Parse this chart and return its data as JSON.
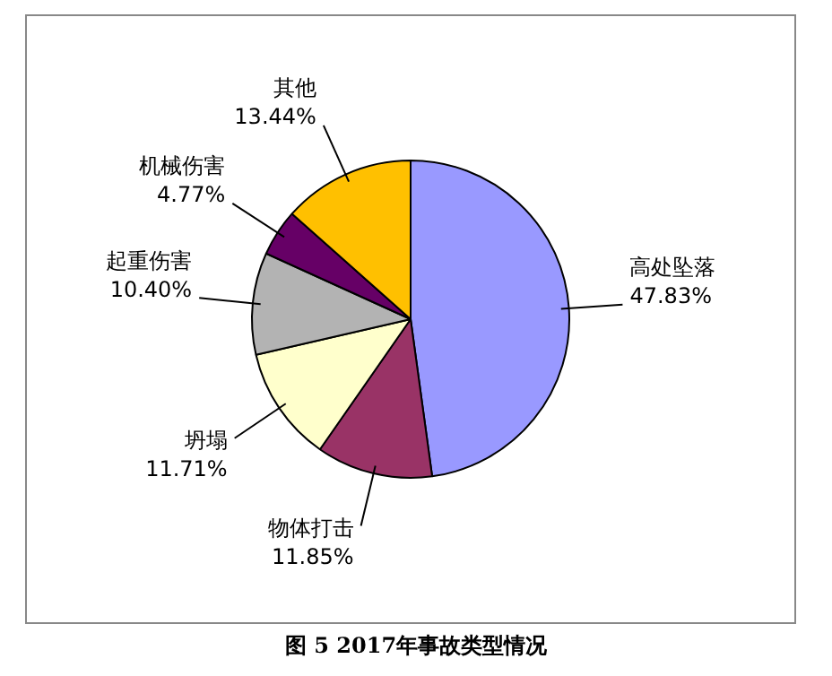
{
  "chart_data": {
    "type": "pie",
    "title": "图 5   2017年事故类型情况",
    "categories": [
      "高处坠落",
      "物体打击",
      "坍塌",
      "起重伤害",
      "机械伤害",
      "其他"
    ],
    "values": [
      47.83,
      11.85,
      11.71,
      10.4,
      4.77,
      13.44
    ],
    "colors": [
      "#9999ff",
      "#993366",
      "#ffffcc",
      "#b3b3b3",
      "#660066",
      "#ffc000"
    ],
    "value_labels": [
      "47.83%",
      "11.85%",
      "11.71%",
      "10.40%",
      "4.77%",
      "13.44%"
    ],
    "legend": false
  }
}
